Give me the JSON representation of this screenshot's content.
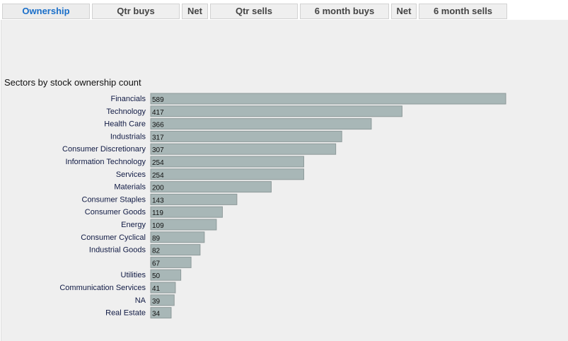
{
  "tabs": [
    {
      "label": "Ownership",
      "active": true
    },
    {
      "label": "Qtr buys"
    },
    {
      "label": "Net"
    },
    {
      "label": "Qtr sells"
    },
    {
      "label": "6 month buys"
    },
    {
      "label": "Net"
    },
    {
      "label": "6 month sells"
    }
  ],
  "chart_data": {
    "type": "bar",
    "orientation": "horizontal",
    "title": "Sectors by stock ownership count",
    "categories": [
      "Financials",
      "Technology",
      "Health Care",
      "Industrials",
      "Consumer Discretionary",
      "Information Technology",
      "Services",
      "Materials",
      "Consumer Staples",
      "Consumer Goods",
      "Energy",
      "Consumer Cyclical",
      "Industrial Goods",
      "",
      "Utilities",
      "Communication Services",
      "NA",
      "Real Estate"
    ],
    "values": [
      589,
      417,
      366,
      317,
      307,
      254,
      254,
      200,
      143,
      119,
      109,
      89,
      82,
      67,
      50,
      41,
      39,
      34
    ],
    "bar_color": "#a8b7b7"
  }
}
